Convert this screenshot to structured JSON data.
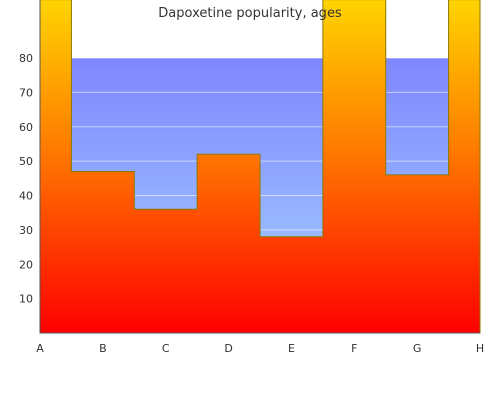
{
  "chart_data": {
    "type": "area",
    "title": "Dapoxetine popularity, ages",
    "categories": [
      "A",
      "B",
      "C",
      "D",
      "E",
      "F",
      "G",
      "H"
    ],
    "y_ticks": [
      10,
      20,
      30,
      40,
      50,
      60,
      70,
      80
    ],
    "ylim": [
      0,
      97
    ],
    "grid": true,
    "series": [
      {
        "values": [
          97,
          47,
          36,
          52,
          28,
          97,
          46,
          97
        ]
      }
    ],
    "band": {
      "from": 0,
      "to": 80
    },
    "colors": {
      "band_top": "#7f86ff",
      "band_bottom": "#a6d4ff",
      "fill_top": "#ffd400",
      "fill_mid": "#ff7a00",
      "fill_bottom": "#ff0000",
      "outline": "#8a7a00",
      "axis": "#555555"
    }
  }
}
